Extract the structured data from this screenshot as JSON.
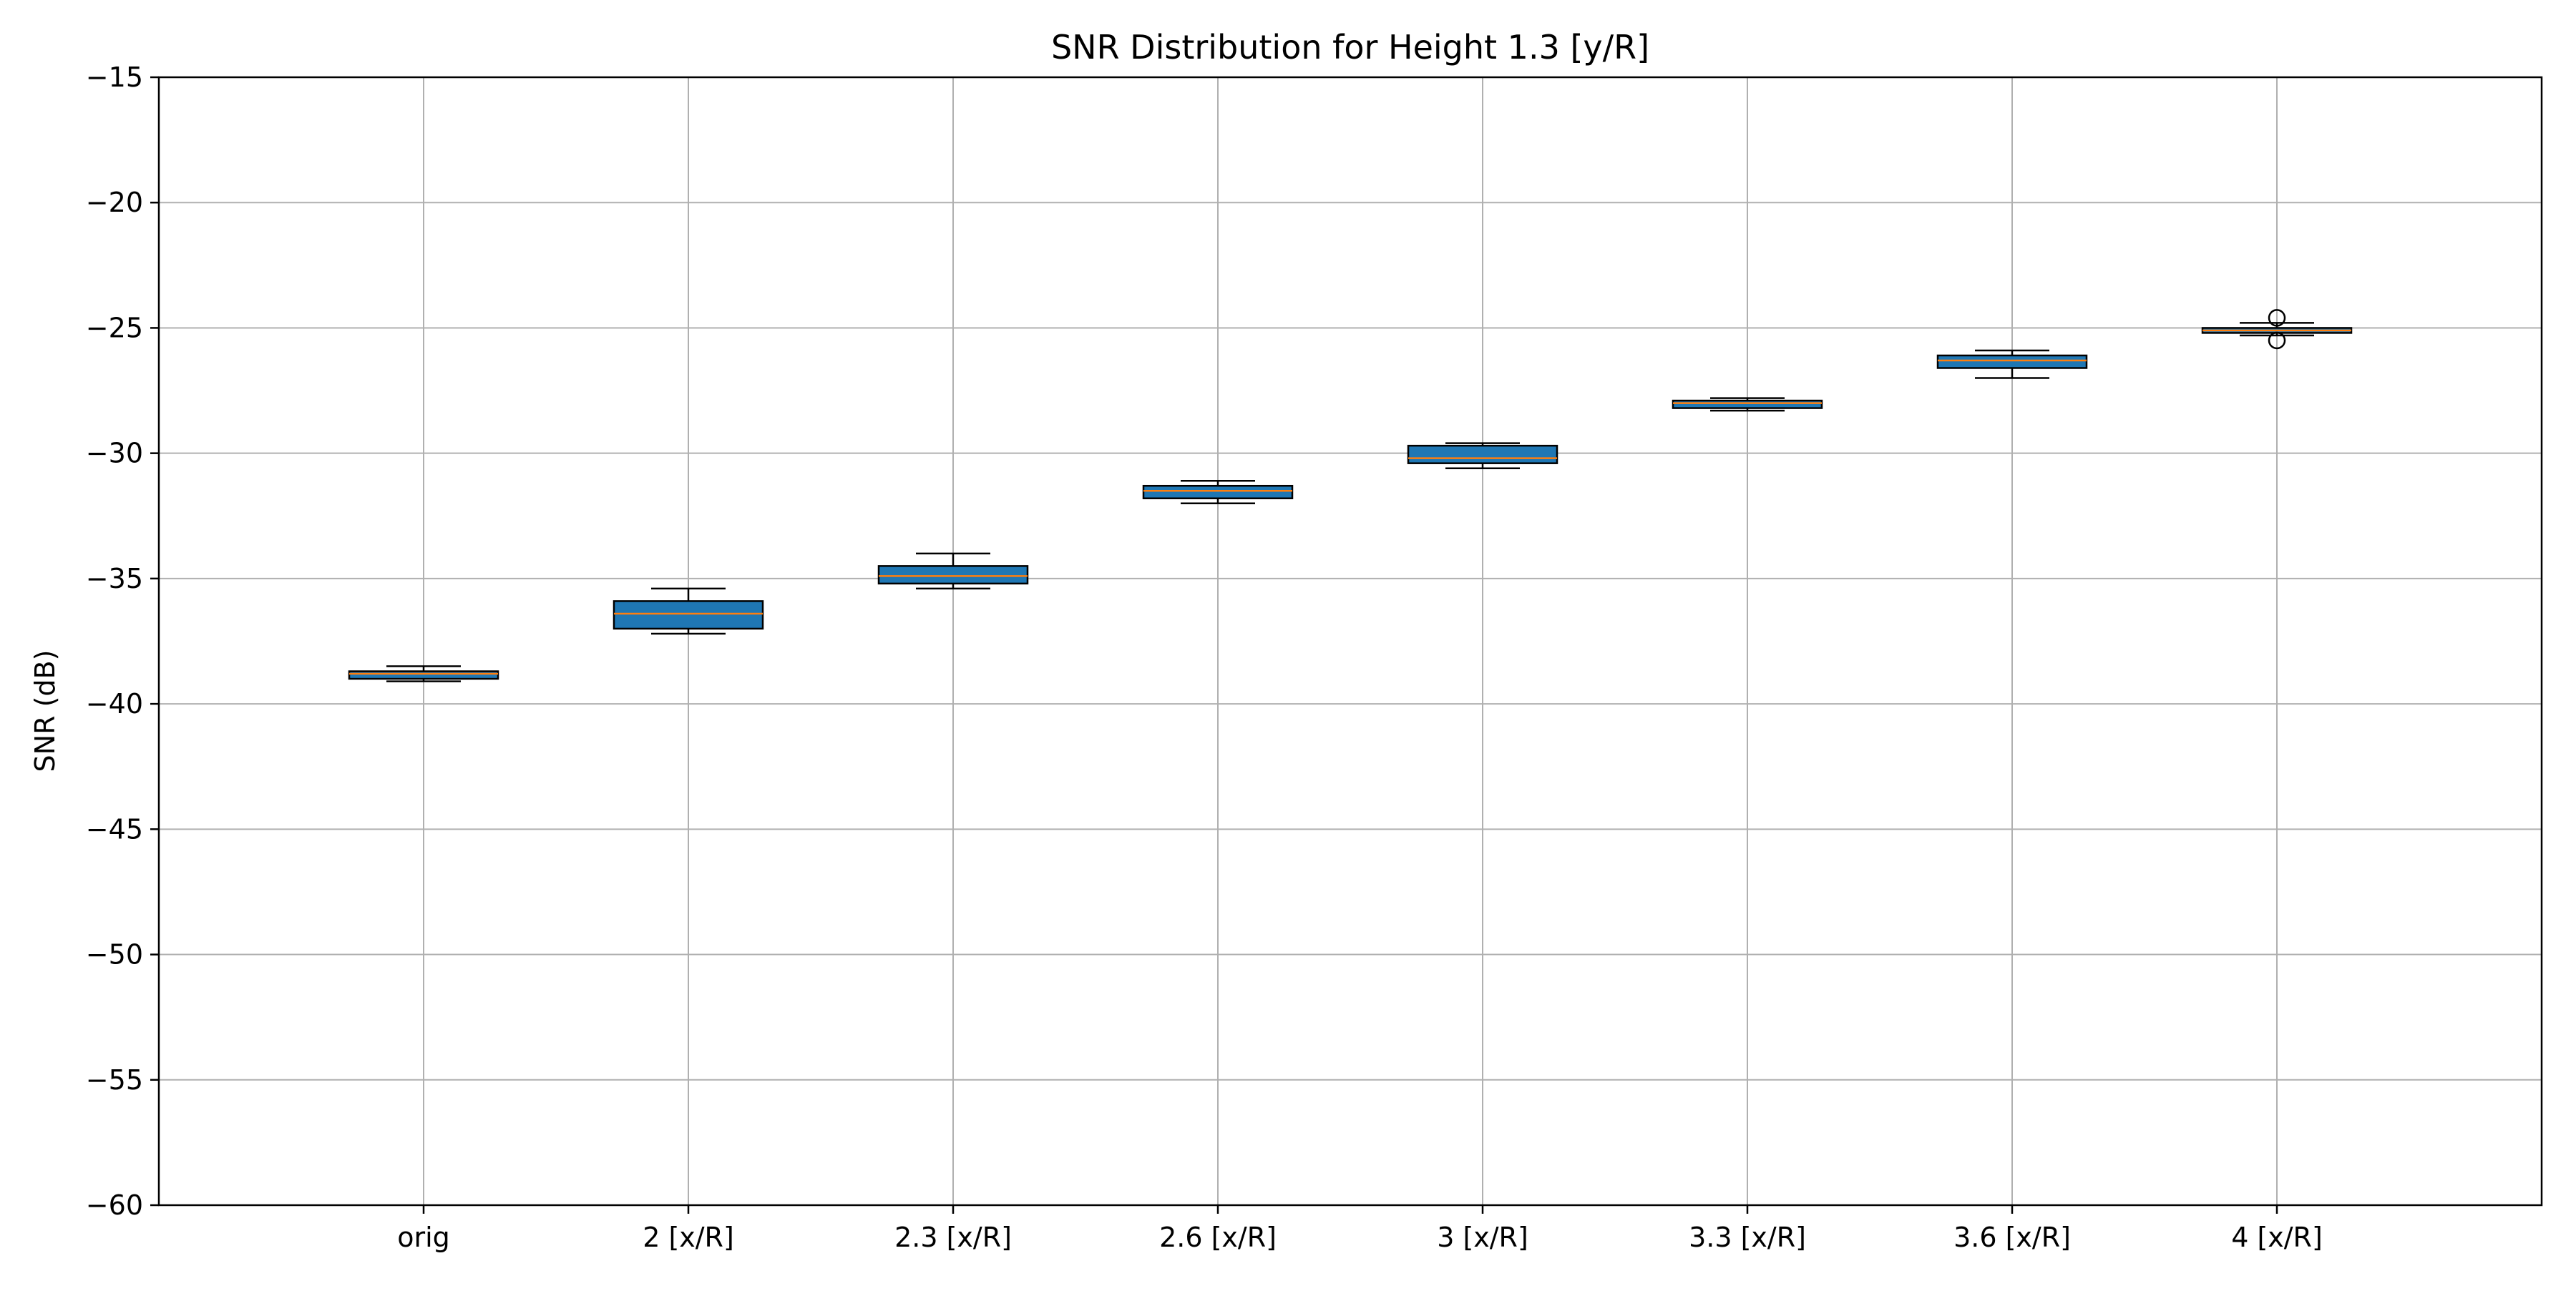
{
  "chart_data": {
    "type": "box",
    "title": "SNR Distribution for Height 1.3 [y/R]",
    "xlabel": "",
    "ylabel": "SNR (dB)",
    "ylim": [
      -60,
      -15
    ],
    "yticks": [
      -15,
      -20,
      -25,
      -30,
      -35,
      -40,
      -45,
      -50,
      -55,
      -60
    ],
    "ytick_labels": [
      "−15",
      "−20",
      "−25",
      "−30",
      "−35",
      "−40",
      "−45",
      "−50",
      "−55",
      "−60"
    ],
    "grid": true,
    "categories": [
      "orig",
      "2 [x/R]",
      "2.3 [x/R]",
      "2.6 [x/R]",
      "3 [x/R]",
      "3.3 [x/R]",
      "3.6 [x/R]",
      "4 [x/R]"
    ],
    "box_color": "#1f77b4",
    "median_color": "#ff7f0e",
    "boxes": [
      {
        "category": "orig",
        "whislo": -39.1,
        "q1": -39.0,
        "med": -38.8,
        "q3": -38.7,
        "whishi": -38.5,
        "fliers": []
      },
      {
        "category": "2 [x/R]",
        "whislo": -37.2,
        "q1": -37.0,
        "med": -36.4,
        "q3": -35.9,
        "whishi": -35.4,
        "fliers": []
      },
      {
        "category": "2.3 [x/R]",
        "whislo": -35.4,
        "q1": -35.2,
        "med": -34.9,
        "q3": -34.5,
        "whishi": -34.0,
        "fliers": []
      },
      {
        "category": "2.6 [x/R]",
        "whislo": -32.0,
        "q1": -31.8,
        "med": -31.5,
        "q3": -31.3,
        "whishi": -31.1,
        "fliers": []
      },
      {
        "category": "3 [x/R]",
        "whislo": -30.6,
        "q1": -30.4,
        "med": -30.2,
        "q3": -29.7,
        "whishi": -29.6,
        "fliers": []
      },
      {
        "category": "3.3 [x/R]",
        "whislo": -28.3,
        "q1": -28.2,
        "med": -28.0,
        "q3": -27.9,
        "whishi": -27.8,
        "fliers": []
      },
      {
        "category": "3.6 [x/R]",
        "whislo": -27.0,
        "q1": -26.6,
        "med": -26.3,
        "q3": -26.1,
        "whishi": -25.9,
        "fliers": []
      },
      {
        "category": "4 [x/R]",
        "whislo": -25.3,
        "q1": -25.2,
        "med": -25.1,
        "q3": -25.0,
        "whishi": -24.8,
        "fliers": [
          -24.6,
          -25.5
        ]
      }
    ]
  }
}
